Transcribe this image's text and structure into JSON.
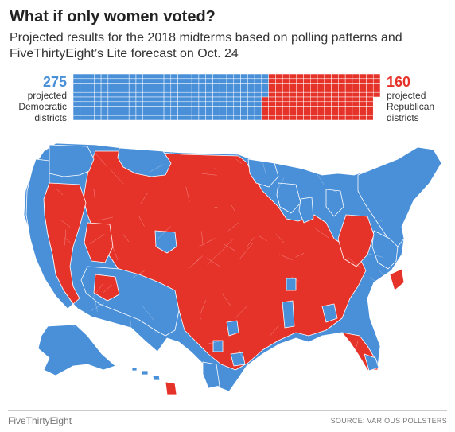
{
  "header": {
    "title": "What if only women voted?",
    "subtitle": "Projected results for the 2018 midterms based on polling patterns and FiveThirtyEight’s Lite forecast on Oct. 24"
  },
  "tally": {
    "dem": {
      "count": "275",
      "line1": "projected",
      "line2": "Democratic",
      "line3": "districts",
      "seats": 275
    },
    "rep": {
      "count": "160",
      "line1": "projected",
      "line2": "Republican",
      "line3": "districts",
      "seats": 160
    }
  },
  "colors": {
    "dem": "#4a90d9",
    "rep": "#e6332a",
    "border": "#ffffff"
  },
  "map": {
    "description_regions": [
      "Pacific coast",
      "Mountain West",
      "Great Plains",
      "Midwest",
      "South",
      "Northeast",
      "Alaska",
      "Hawaii"
    ]
  },
  "footer": {
    "brand": "FiveThirtyEight",
    "source": "SOURCE: VARIOUS POLLSTERS"
  }
}
